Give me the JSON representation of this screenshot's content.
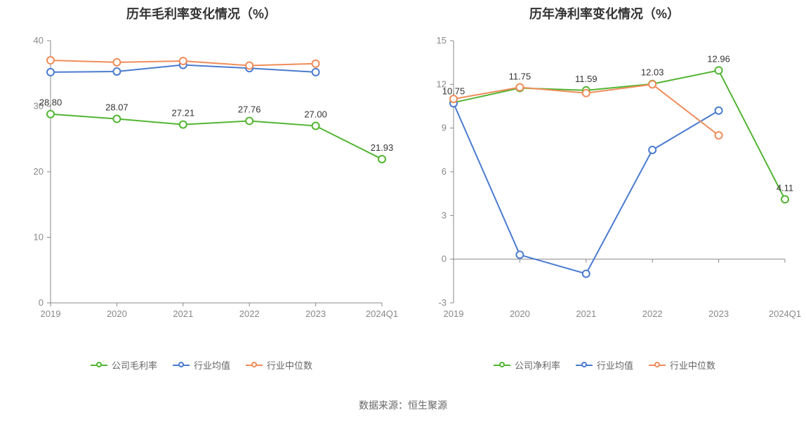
{
  "footer_text": "数据来源：恒生聚源",
  "colors": {
    "company": "#52b531",
    "industry_mean": "#4a7bd0",
    "industry_median": "#f08c5a",
    "axis": "#888888",
    "tick_label": "#888888",
    "data_label": "#333333",
    "background": "#ffffff",
    "title": "#333333"
  },
  "typography": {
    "title_fontsize": 18,
    "title_weight": "bold",
    "axis_label_fontsize": 13,
    "data_label_fontsize": 13,
    "legend_fontsize": 13,
    "footer_fontsize": 14
  },
  "left_chart": {
    "type": "line",
    "title": "历年毛利率变化情况（%）",
    "categories": [
      "2019",
      "2020",
      "2021",
      "2022",
      "2023",
      "2024Q1"
    ],
    "ylim": [
      0,
      40
    ],
    "ytick_step": 10,
    "yticks": [
      0,
      10,
      20,
      30,
      40
    ],
    "grid": false,
    "line_width": 2,
    "marker": "circle",
    "marker_size": 5,
    "marker_fill": "#ffffff",
    "series": [
      {
        "key": "company",
        "name": "公司毛利率",
        "color": "#52b531",
        "values": [
          28.8,
          28.07,
          27.21,
          27.76,
          27.0,
          21.93
        ],
        "show_labels": true,
        "labels": [
          "28.80",
          "28.07",
          "27.21",
          "27.76",
          "27.00",
          "21.93"
        ]
      },
      {
        "key": "industry_mean",
        "name": "行业均值",
        "color": "#4a7bd0",
        "values": [
          35.2,
          35.3,
          36.3,
          35.8,
          35.2,
          null
        ],
        "show_labels": false
      },
      {
        "key": "industry_median",
        "name": "行业中位数",
        "color": "#f08c5a",
        "values": [
          37.0,
          36.7,
          36.9,
          36.2,
          36.5,
          null
        ],
        "show_labels": false
      }
    ],
    "legend": [
      {
        "label": "公司毛利率",
        "color": "#52b531"
      },
      {
        "label": "行业均值",
        "color": "#4a7bd0"
      },
      {
        "label": "行业中位数",
        "color": "#f08c5a"
      }
    ]
  },
  "right_chart": {
    "type": "line",
    "title": "历年净利率变化情况（%）",
    "categories": [
      "2019",
      "2020",
      "2021",
      "2022",
      "2023",
      "2024Q1"
    ],
    "ylim": [
      -3,
      15
    ],
    "ytick_step": 3,
    "yticks": [
      -3,
      0,
      3,
      6,
      9,
      12,
      15
    ],
    "grid": false,
    "zero_line": true,
    "line_width": 2,
    "marker": "circle",
    "marker_size": 5,
    "marker_fill": "#ffffff",
    "series": [
      {
        "key": "company",
        "name": "公司净利率",
        "color": "#52b531",
        "values": [
          10.75,
          11.75,
          11.59,
          12.03,
          12.96,
          4.11
        ],
        "show_labels": true,
        "labels": [
          "10.75",
          "11.75",
          "11.59",
          "12.03",
          "12.96",
          "4.11"
        ]
      },
      {
        "key": "industry_mean",
        "name": "行业均值",
        "color": "#4a7bd0",
        "values": [
          10.7,
          0.3,
          -1.0,
          7.5,
          10.2,
          null
        ],
        "show_labels": false
      },
      {
        "key": "industry_median",
        "name": "行业中位数",
        "color": "#f08c5a",
        "values": [
          11.0,
          11.8,
          11.4,
          12.0,
          8.5,
          null
        ],
        "show_labels": false
      }
    ],
    "legend": [
      {
        "label": "公司净利率",
        "color": "#52b531"
      },
      {
        "label": "行业均值",
        "color": "#4a7bd0"
      },
      {
        "label": "行业中位数",
        "color": "#f08c5a"
      }
    ]
  }
}
